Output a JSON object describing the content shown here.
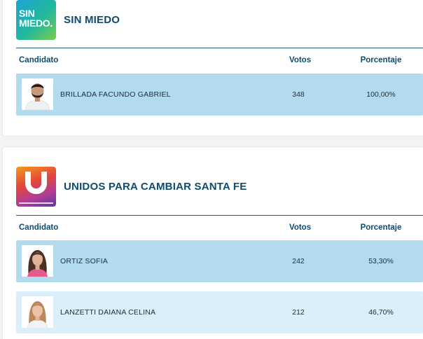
{
  "columns": {
    "candidate": "Candidato",
    "votes": "Votos",
    "percent": "Porcentaje"
  },
  "colors": {
    "accent": "#0f4b6e",
    "row_highlight": "#b3dbf0",
    "row_plain": "#dceef9"
  },
  "parties": [
    {
      "name": "SIN MIEDO",
      "logo_text": "SIN\nMIEDO.",
      "candidates": [
        {
          "name": "BRILLADA FACUNDO GABRIEL",
          "votes": "348",
          "percent": "100,00%",
          "photo": "candidate-photo-male"
        }
      ]
    },
    {
      "name": "UNIDOS PARA CAMBIAR SANTA FE",
      "logo_text": "U",
      "candidates": [
        {
          "name": "ORTIZ SOFIA",
          "votes": "242",
          "percent": "53,30%",
          "photo": "candidate-photo-female"
        },
        {
          "name": "LANZETTI DAIANA CELINA",
          "votes": "212",
          "percent": "46,70%",
          "photo": "candidate-photo-female"
        }
      ]
    }
  ]
}
